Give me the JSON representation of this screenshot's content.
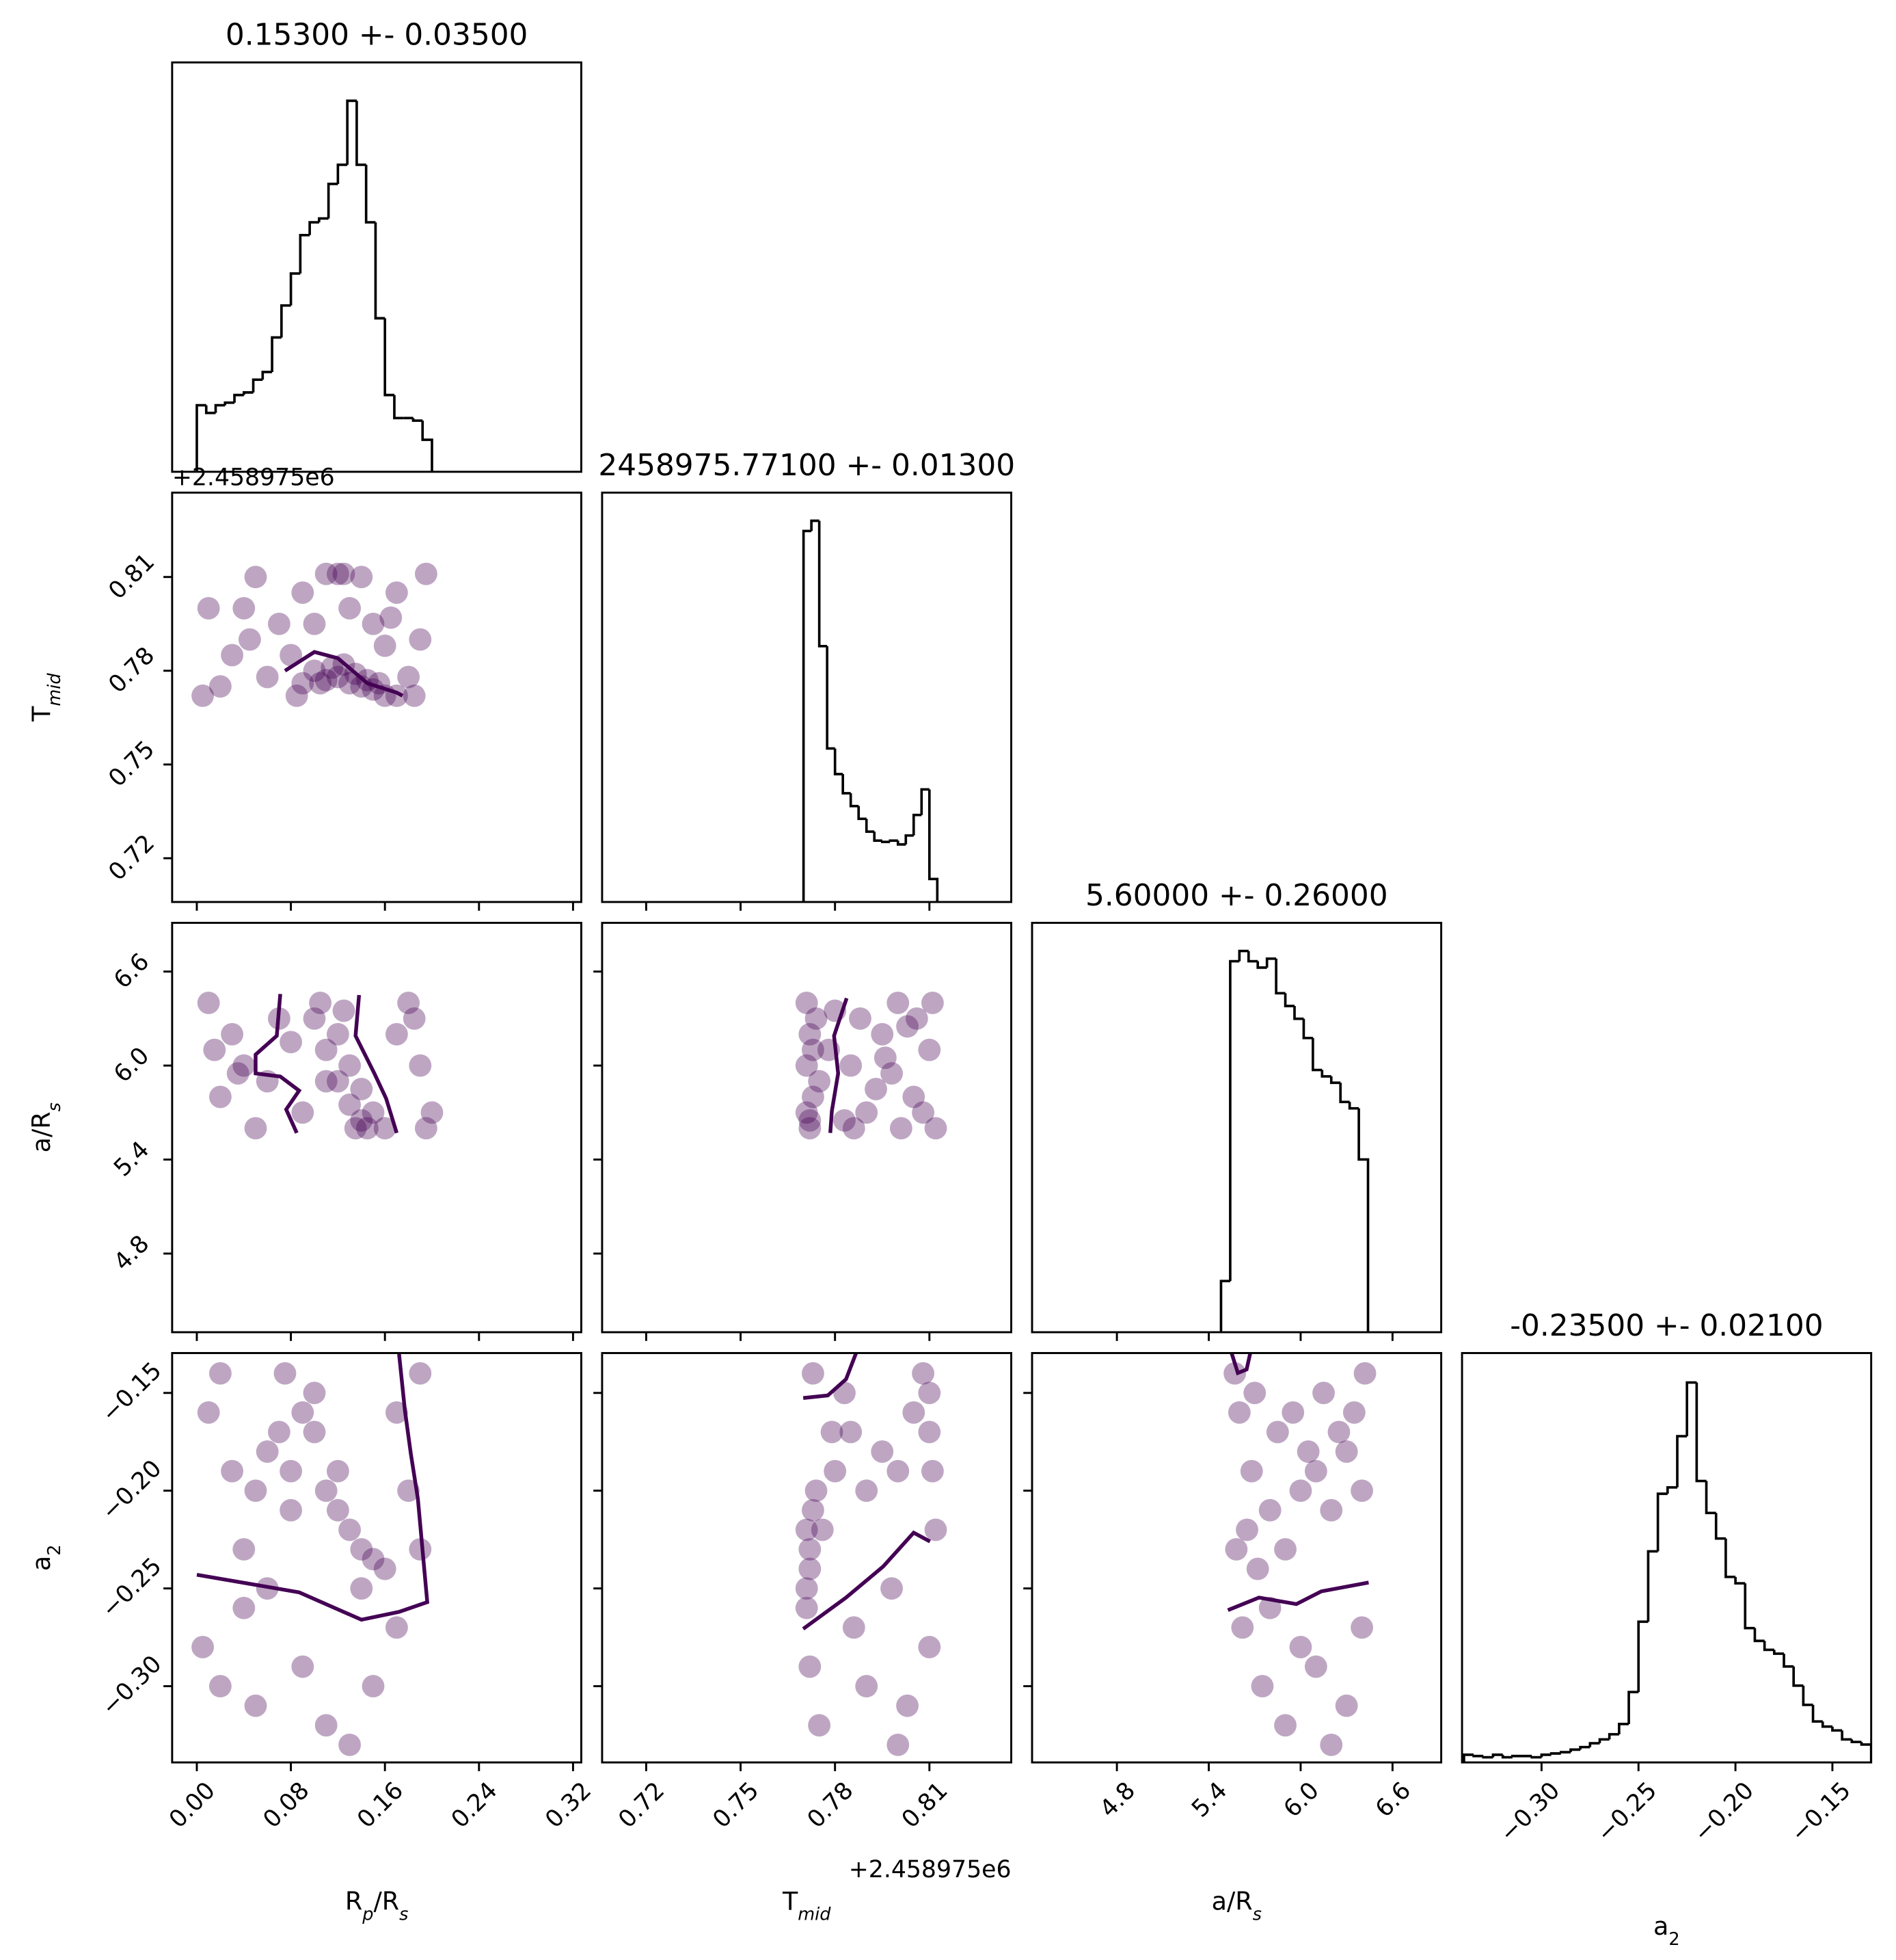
{
  "chart_data": [
    {
      "type": "histogram",
      "title": "0.15300 +- 0.03500",
      "color": "#000000",
      "bins": [
        0,
        0.008,
        0.016,
        0.024,
        0.032,
        0.04,
        0.048,
        0.056,
        0.064,
        0.072,
        0.08,
        0.088,
        0.096,
        0.104,
        0.112,
        0.12,
        0.128,
        0.136,
        0.144,
        0.152,
        0.16,
        0.168,
        0.176,
        0.184,
        0.192,
        0.2
      ],
      "counts": [
        52,
        46,
        52,
        54,
        60,
        62,
        72,
        78,
        105,
        130,
        155,
        185,
        195,
        198,
        225,
        240,
        290,
        240,
        195,
        120,
        60,
        42,
        42,
        40,
        25
      ],
      "xlim": [
        -0.021,
        0.327
      ],
      "ylim": [
        0,
        320
      ],
      "xticks": []
    },
    {
      "type": "scatter",
      "color": "#440154",
      "yoffset": "+2.458975e6",
      "ylabel": [
        "T",
        "mid"
      ],
      "x": [
        0.01,
        0.03,
        0.05,
        0.07,
        0.02,
        0.09,
        0.11,
        0.13,
        0.15,
        0.17,
        0.19,
        0.195,
        0.06,
        0.18,
        0.04,
        0.1,
        0.12,
        0.14,
        0.08,
        0.16,
        0.005,
        0.045,
        0.085,
        0.125,
        0.165,
        0.185,
        0.1,
        0.11,
        0.12,
        0.13,
        0.14,
        0.15,
        0.125,
        0.135,
        0.115,
        0.145,
        0.155,
        0.16,
        0.105,
        0.17,
        0.09
      ],
      "y": [
        0.8,
        0.785,
        0.81,
        0.795,
        0.775,
        0.805,
        0.811,
        0.8,
        0.795,
        0.805,
        0.79,
        0.811,
        0.778,
        0.778,
        0.8,
        0.795,
        0.811,
        0.81,
        0.785,
        0.788,
        0.772,
        0.79,
        0.772,
        0.811,
        0.797,
        0.772,
        0.78,
        0.777,
        0.778,
        0.776,
        0.775,
        0.774,
        0.782,
        0.779,
        0.781,
        0.777,
        0.776,
        0.772,
        0.776,
        0.772,
        0.776
      ],
      "contours": [
        {
          "x": [
            0.075,
            0.1,
            0.12,
            0.145,
            0.17,
            0.175
          ],
          "y": [
            0.78,
            0.786,
            0.784,
            0.776,
            0.773,
            0.772
          ]
        }
      ],
      "xlim": [
        -0.021,
        0.327
      ],
      "ylim": [
        0.706,
        0.837
      ],
      "xticks": [
        0,
        0.08,
        0.16,
        0.24,
        0.32
      ],
      "xticklabels": false,
      "yticks": [
        0.72,
        0.75,
        0.78,
        0.81
      ],
      "yticklabels": true
    },
    {
      "type": "histogram",
      "title": "2458975.77100 +- 0.01300",
      "color": "#000000",
      "bins": [
        0.77,
        0.7725,
        0.775,
        0.7775,
        0.78,
        0.7825,
        0.785,
        0.7875,
        0.79,
        0.7925,
        0.795,
        0.7975,
        0.8,
        0.8025,
        0.805,
        0.8075,
        0.81,
        0.8125
      ],
      "counts": [
        290,
        298,
        200,
        120,
        100,
        85,
        75,
        65,
        55,
        48,
        47,
        48,
        45,
        52,
        68,
        88,
        18
      ],
      "xlim": [
        0.706,
        0.836
      ],
      "ylim": [
        0,
        320
      ],
      "xticks": [
        0.72,
        0.75,
        0.78,
        0.81
      ],
      "xticklabels": false
    },
    {
      "type": "scatter",
      "color": "#440154",
      "ylabel": [
        "a/R",
        "s"
      ],
      "x": [
        0.01,
        0.03,
        0.02,
        0.05,
        0.04,
        0.07,
        0.09,
        0.18,
        0.19,
        0.2,
        0.17,
        0.06,
        0.015,
        0.195,
        0.185,
        0.1,
        0.11,
        0.12,
        0.13,
        0.14,
        0.12,
        0.13,
        0.14,
        0.15,
        0.11,
        0.16,
        0.105,
        0.125,
        0.145,
        0.135,
        0.08,
        0.035
      ],
      "y": [
        6.4,
        6.2,
        5.8,
        5.6,
        6.0,
        6.3,
        5.7,
        6.4,
        6.0,
        5.7,
        6.2,
        5.9,
        6.1,
        5.6,
        6.3,
        6.3,
        6.1,
        5.9,
        5.75,
        5.65,
        6.2,
        6.0,
        5.85,
        5.7,
        5.9,
        5.6,
        6.4,
        6.35,
        5.6,
        5.6,
        6.15,
        5.95
      ],
      "contours": [
        {
          "x": [
            0.071,
            0.068,
            0.05,
            0.05,
            0.071,
            0.087,
            0.076,
            0.085
          ],
          "y": [
            6.457,
            6.19,
            6.07,
            5.95,
            5.93,
            5.84,
            5.72,
            5.57
          ]
        },
        {
          "x": [
            0.138,
            0.135,
            0.151,
            0.161,
            0.17
          ],
          "y": [
            6.45,
            6.19,
            5.95,
            5.79,
            5.57
          ]
        }
      ],
      "xlim": [
        -0.021,
        0.327
      ],
      "ylim": [
        4.298,
        6.911
      ],
      "xticks": [
        0,
        0.08,
        0.16,
        0.24,
        0.32
      ],
      "xticklabels": false,
      "yticks": [
        6.6,
        {
          "value": 6.0,
          "label": "6.0"
        },
        5.4,
        4.8
      ],
      "yticklabels": true
    },
    {
      "type": "scatter",
      "color": "#440154",
      "x": [
        0.771,
        0.772,
        0.771,
        0.773,
        0.772,
        0.774,
        0.771,
        0.773,
        0.775,
        0.772,
        0.78,
        0.785,
        0.79,
        0.795,
        0.8,
        0.805,
        0.81,
        0.812,
        0.783,
        0.788,
        0.798,
        0.803,
        0.808,
        0.793,
        0.778,
        0.811,
        0.786,
        0.796,
        0.806,
        0.801
      ],
      "y": [
        6.4,
        6.2,
        6.0,
        5.8,
        5.6,
        6.3,
        5.7,
        6.1,
        5.9,
        5.65,
        6.35,
        6.0,
        5.7,
        6.2,
        6.4,
        5.8,
        6.1,
        5.6,
        5.65,
        6.3,
        5.95,
        6.25,
        5.7,
        5.85,
        6.1,
        6.4,
        5.6,
        6.05,
        6.3,
        5.6
      ],
      "contours": [
        {
          "x": [
            0.7837,
            0.7797,
            0.781,
            0.779,
            0.7785
          ],
          "y": [
            6.43,
            6.19,
            5.95,
            5.71,
            5.57
          ]
        }
      ],
      "xlim": [
        0.706,
        0.836
      ],
      "ylim": [
        4.298,
        6.911
      ],
      "xticks": [
        0.72,
        0.75,
        0.78,
        0.81
      ],
      "xticklabels": false,
      "yticks": [
        4.8,
        5.4,
        6.0,
        6.6
      ],
      "yticklabels": false
    },
    {
      "type": "histogram",
      "title": "5.60000 +- 0.26000",
      "color": "#000000",
      "bins": [
        5.48,
        5.54,
        5.6,
        5.66,
        5.72,
        5.78,
        5.84,
        5.9,
        5.96,
        6.02,
        6.08,
        6.14,
        6.2,
        6.26,
        6.32,
        6.38,
        6.44
      ],
      "counts": [
        40,
        290,
        298,
        290,
        285,
        292,
        265,
        255,
        245,
        230,
        205,
        200,
        195,
        180,
        175,
        135
      ],
      "xlim": [
        4.246,
        6.918
      ],
      "ylim": [
        0,
        320
      ],
      "xticks": [
        4.8,
        5.4,
        6.0,
        6.6
      ],
      "xticklabels": false
    },
    {
      "type": "scatter",
      "color": "#440154",
      "xlabel": [
        "R",
        "p",
        "/R",
        "s"
      ],
      "ylabel": [
        "a",
        "2"
      ],
      "x": [
        0.01,
        0.03,
        0.02,
        0.05,
        0.04,
        0.06,
        0.08,
        0.07,
        0.1,
        0.09,
        0.11,
        0.12,
        0.13,
        0.14,
        0.15,
        0.16,
        0.1,
        0.12,
        0.08,
        0.06,
        0.17,
        0.18,
        0.19,
        0.005,
        0.02,
        0.05,
        0.09,
        0.13,
        0.17,
        0.11,
        0.15,
        0.19,
        0.04,
        0.14,
        0.075
      ],
      "y": [
        -0.16,
        -0.19,
        -0.14,
        -0.2,
        -0.23,
        -0.18,
        -0.19,
        -0.17,
        -0.17,
        -0.16,
        -0.2,
        -0.21,
        -0.22,
        -0.23,
        -0.235,
        -0.24,
        -0.15,
        -0.19,
        -0.21,
        -0.25,
        -0.16,
        -0.2,
        -0.23,
        -0.28,
        -0.3,
        -0.31,
        -0.29,
        -0.33,
        -0.27,
        -0.32,
        -0.3,
        -0.14,
        -0.26,
        -0.25,
        -0.14
      ],
      "contours": [
        {
          "x": [
            0.0,
            0.087,
            0.14,
            0.172,
            0.196,
            0.188,
            0.182,
            0.177,
            0.172
          ],
          "y": [
            -0.243,
            -0.252,
            -0.266,
            -0.262,
            -0.257,
            -0.204,
            -0.181,
            -0.159,
            -0.13
          ]
        }
      ],
      "xlim": [
        -0.021,
        0.327
      ],
      "ylim": [
        -0.339,
        -0.1296
      ],
      "xticks": [
        {
          "value": 0,
          "label": "0.00"
        },
        0.08,
        0.16,
        0.24,
        0.32
      ],
      "xticklabels": true,
      "yticks": [
        {
          "value": -0.15,
          "label": "−0.15"
        },
        {
          "value": -0.2,
          "label": "−0.20"
        },
        {
          "value": -0.25,
          "label": "−0.25"
        },
        {
          "value": -0.3,
          "label": "−0.30"
        }
      ],
      "yticklabels": true
    },
    {
      "type": "scatter",
      "color": "#440154",
      "xlabel": [
        "T",
        "mid"
      ],
      "xoffset": "+2.458975e6",
      "x": [
        0.771,
        0.772,
        0.771,
        0.773,
        0.772,
        0.774,
        0.771,
        0.776,
        0.78,
        0.785,
        0.79,
        0.795,
        0.8,
        0.805,
        0.81,
        0.81,
        0.811,
        0.808,
        0.783,
        0.772,
        0.775,
        0.79,
        0.8,
        0.81,
        0.773,
        0.786,
        0.798,
        0.812,
        0.779,
        0.803
      ],
      "y": [
        -0.22,
        -0.24,
        -0.26,
        -0.21,
        -0.23,
        -0.2,
        -0.25,
        -0.22,
        -0.19,
        -0.17,
        -0.2,
        -0.18,
        -0.19,
        -0.16,
        -0.17,
        -0.15,
        -0.19,
        -0.14,
        -0.15,
        -0.29,
        -0.32,
        -0.3,
        -0.33,
        -0.28,
        -0.14,
        -0.27,
        -0.25,
        -0.22,
        -0.17,
        -0.31
      ],
      "contours": [
        {
          "x": [
            0.7699,
            0.7777,
            0.7835,
            0.7867
          ],
          "y": [
            -0.1526,
            -0.1513,
            -0.143,
            -0.1296
          ]
        },
        {
          "x": [
            0.7699,
            0.7835,
            0.7953,
            0.805,
            0.8102
          ],
          "y": [
            -0.2707,
            -0.2547,
            -0.2388,
            -0.2215,
            -0.226
          ]
        }
      ],
      "xlim": [
        0.706,
        0.836
      ],
      "ylim": [
        -0.339,
        -0.1296
      ],
      "xticks": [
        0.72,
        0.75,
        0.78,
        0.81
      ],
      "xticklabels": true,
      "yticks": [
        -0.15,
        -0.2,
        -0.25,
        -0.3
      ],
      "yticklabels": false
    },
    {
      "type": "scatter",
      "color": "#440154",
      "xlabel": [
        "a/R",
        "s"
      ],
      "x": [
        5.58,
        5.65,
        5.72,
        5.8,
        5.9,
        6.0,
        6.1,
        6.2,
        6.3,
        6.4,
        5.6,
        5.7,
        5.85,
        5.95,
        6.05,
        6.15,
        6.25,
        6.35,
        6.42,
        5.62,
        5.75,
        5.9,
        6.1,
        6.3,
        5.57,
        5.8,
        6.0,
        6.2,
        6.4,
        5.68
      ],
      "y": [
        -0.23,
        -0.22,
        -0.24,
        -0.21,
        -0.23,
        -0.2,
        -0.19,
        -0.21,
        -0.18,
        -0.2,
        -0.16,
        -0.15,
        -0.17,
        -0.16,
        -0.18,
        -0.15,
        -0.17,
        -0.16,
        -0.14,
        -0.27,
        -0.3,
        -0.32,
        -0.29,
        -0.31,
        -0.14,
        -0.26,
        -0.28,
        -0.33,
        -0.27,
        -0.19
      ],
      "contours": [
        {
          "x": [
            5.549,
            5.59,
            5.647,
            5.671
          ],
          "y": [
            -0.1296,
            -0.1398,
            -0.138,
            -0.1296
          ]
        },
        {
          "x": [
            5.525,
            5.728,
            5.972,
            6.135,
            6.444
          ],
          "y": [
            -0.2611,
            -0.2547,
            -0.258,
            -0.2515,
            -0.247
          ]
        }
      ],
      "xlim": [
        4.246,
        6.918
      ],
      "ylim": [
        -0.339,
        -0.1296
      ],
      "xticks": [
        4.8,
        5.4,
        {
          "value": 6.0,
          "label": "6.0"
        },
        6.6
      ],
      "xticklabels": true,
      "yticks": [
        -0.15,
        -0.2,
        -0.25,
        -0.3
      ],
      "yticklabels": false
    },
    {
      "type": "histogram",
      "title": "-0.23500 +- 0.02100",
      "color": "#000000",
      "xlabel": [
        "a",
        "2"
      ],
      "bins": [
        -0.34,
        -0.335,
        -0.33,
        -0.325,
        -0.32,
        -0.315,
        -0.31,
        -0.305,
        -0.3,
        -0.295,
        -0.29,
        -0.285,
        -0.28,
        -0.275,
        -0.27,
        -0.265,
        -0.26,
        -0.255,
        -0.25,
        -0.245,
        -0.24,
        -0.235,
        -0.23,
        -0.225,
        -0.22,
        -0.215,
        -0.21,
        -0.205,
        -0.2,
        -0.195,
        -0.19,
        -0.185,
        -0.18,
        -0.175,
        -0.17,
        -0.165,
        -0.16,
        -0.155,
        -0.15,
        -0.145,
        -0.14,
        -0.135,
        -0.13
      ],
      "counts": [
        6,
        5,
        4,
        6,
        4,
        5,
        5,
        4,
        6,
        7,
        8,
        10,
        12,
        15,
        18,
        22,
        30,
        55,
        110,
        165,
        210,
        215,
        255,
        297,
        220,
        195,
        175,
        145,
        140,
        105,
        95,
        88,
        85,
        75,
        60,
        45,
        32,
        28,
        25,
        18,
        16,
        14
      ],
      "xlim": [
        -0.341,
        -0.13
      ],
      "ylim": [
        0,
        320
      ],
      "xticks": [
        {
          "value": -0.3,
          "label": "−0.30"
        },
        {
          "value": -0.25,
          "label": "−0.25"
        },
        {
          "value": -0.2,
          "label": "−0.20"
        },
        {
          "value": -0.15,
          "label": "−0.15"
        }
      ],
      "xticklabels": true
    }
  ]
}
